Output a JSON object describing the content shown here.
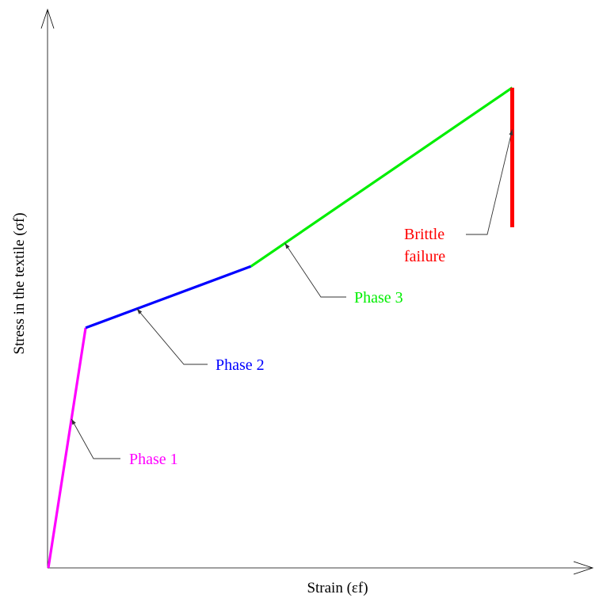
{
  "chart_data": {
    "type": "line",
    "title": "",
    "xlabel": "Strain (εf)",
    "ylabel": "Stress in the textile (σf)",
    "xlim": [
      0,
      1
    ],
    "ylim": [
      0,
      1
    ],
    "grid": false,
    "legend": "none",
    "series": [
      {
        "name": "Phase 1",
        "color": "#ff00ff",
        "x": [
          0,
          0.07
        ],
        "y": [
          0,
          0.43
        ]
      },
      {
        "name": "Phase 2",
        "color": "#0000ff",
        "x": [
          0.07,
          0.38
        ],
        "y": [
          0.43,
          0.54
        ]
      },
      {
        "name": "Phase 3",
        "color": "#00ee00",
        "x": [
          0.38,
          0.87
        ],
        "y": [
          0.54,
          0.86
        ]
      },
      {
        "name": "Brittle failure",
        "color": "#ff0000",
        "x": [
          0.87,
          0.87
        ],
        "y": [
          0.86,
          0.61
        ]
      }
    ],
    "annotations": [
      {
        "label": "Phase 1",
        "color": "#ff00ff",
        "series": 0
      },
      {
        "label": "Phase 2",
        "color": "#0000ff",
        "series": 1
      },
      {
        "label": "Phase 3",
        "color": "#00ee00",
        "series": 2
      },
      {
        "label": [
          "Brittle",
          "failure"
        ],
        "color": "#ff0000",
        "series": 3
      }
    ]
  }
}
